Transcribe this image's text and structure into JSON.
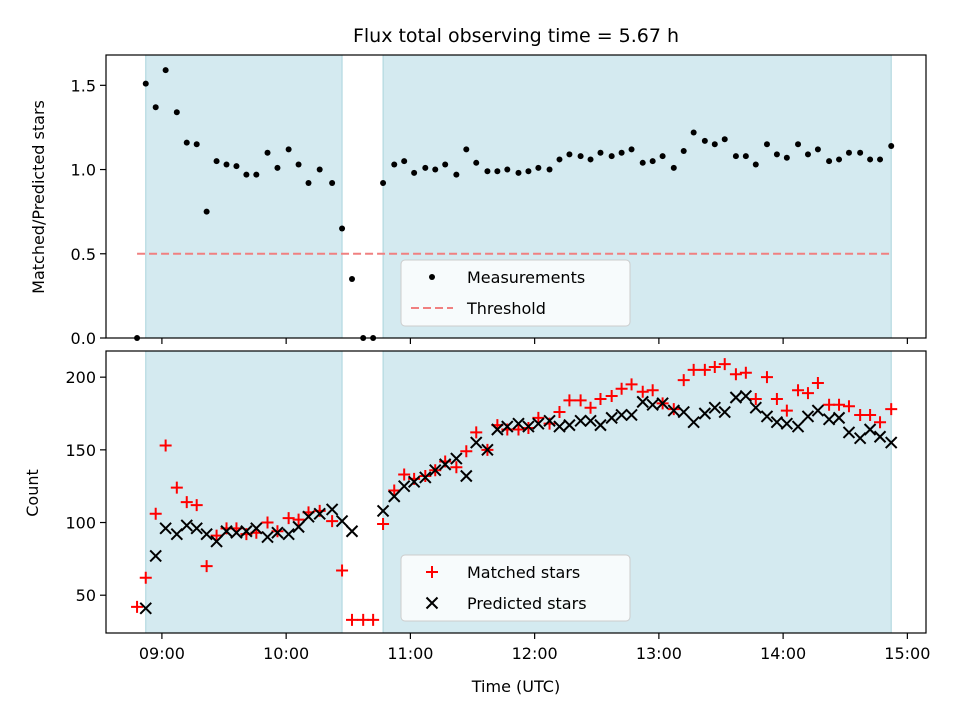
{
  "chart_data": [
    {
      "type": "scatter",
      "title": "Flux total observing time = 5.67 h",
      "xlabel": "",
      "ylabel": "Matched/Predicted stars",
      "xlim": [
        8.55,
        15.15
      ],
      "ylim": [
        0,
        1.68
      ],
      "yticks": [
        0.0,
        0.5,
        1.0,
        1.5
      ],
      "ytick_labels": [
        "0.0",
        "0.5",
        "1.0",
        "1.5"
      ],
      "xticks": [
        9,
        10,
        11,
        12,
        13,
        14,
        15
      ],
      "shaded_spans": [
        [
          8.87,
          10.45
        ],
        [
          10.78,
          14.87
        ]
      ],
      "shade_color": "#d4eaf0",
      "threshold": {
        "name": "Threshold",
        "value": 0.5,
        "x_range": [
          8.8,
          14.87
        ],
        "color": "#f08080"
      },
      "series": [
        {
          "name": "Measurements",
          "color": "#000000",
          "x": [
            8.8,
            8.87,
            8.95,
            9.03,
            9.12,
            9.2,
            9.28,
            9.36,
            9.44,
            9.52,
            9.6,
            9.68,
            9.76,
            9.85,
            9.93,
            10.02,
            10.1,
            10.18,
            10.27,
            10.37,
            10.45,
            10.53,
            10.62,
            10.7,
            10.78,
            10.87,
            10.95,
            11.03,
            11.12,
            11.2,
            11.28,
            11.37,
            11.45,
            11.53,
            11.62,
            11.7,
            11.78,
            11.87,
            11.95,
            12.03,
            12.12,
            12.2,
            12.28,
            12.37,
            12.45,
            12.53,
            12.62,
            12.7,
            12.78,
            12.87,
            12.95,
            13.03,
            13.12,
            13.2,
            13.28,
            13.37,
            13.45,
            13.53,
            13.62,
            13.7,
            13.78,
            13.87,
            13.95,
            14.03,
            14.12,
            14.2,
            14.28,
            14.37,
            14.45,
            14.53,
            14.62,
            14.7,
            14.78,
            14.87
          ],
          "y": [
            0.0,
            1.51,
            1.37,
            1.59,
            1.34,
            1.16,
            1.15,
            0.75,
            1.05,
            1.03,
            1.02,
            0.97,
            0.97,
            1.1,
            1.01,
            1.12,
            1.03,
            0.92,
            1.0,
            0.92,
            0.65,
            0.35,
            0.0,
            0.0,
            0.92,
            1.03,
            1.05,
            0.98,
            1.01,
            1.0,
            1.03,
            0.97,
            1.12,
            1.04,
            0.99,
            0.99,
            1.0,
            0.98,
            0.99,
            1.01,
            1.0,
            1.06,
            1.09,
            1.08,
            1.06,
            1.1,
            1.08,
            1.1,
            1.12,
            1.04,
            1.05,
            1.08,
            1.01,
            1.11,
            1.22,
            1.17,
            1.15,
            1.18,
            1.08,
            1.08,
            1.03,
            1.15,
            1.09,
            1.07,
            1.15,
            1.09,
            1.12,
            1.05,
            1.06,
            1.1,
            1.1,
            1.06,
            1.06,
            1.14
          ]
        }
      ],
      "legend": {
        "location": "lower center",
        "entries": [
          "Measurements",
          "Threshold"
        ]
      }
    },
    {
      "type": "scatter",
      "title": "",
      "xlabel": "Time (UTC)",
      "ylabel": "Count",
      "xlim": [
        8.55,
        15.15
      ],
      "ylim": [
        24,
        218
      ],
      "yticks": [
        50,
        100,
        150,
        200
      ],
      "ytick_labels": [
        "50",
        "100",
        "150",
        "200"
      ],
      "xticks": [
        9,
        10,
        11,
        12,
        13,
        14,
        15
      ],
      "xtick_labels": [
        "09:00",
        "10:00",
        "11:00",
        "12:00",
        "13:00",
        "14:00",
        "15:00"
      ],
      "shaded_spans": [
        [
          8.87,
          10.45
        ],
        [
          10.78,
          14.87
        ]
      ],
      "shade_color": "#d4eaf0",
      "series": [
        {
          "name": "Matched stars",
          "marker": "plus",
          "color": "#ff0000",
          "x": [
            8.8,
            8.87,
            8.95,
            9.03,
            9.12,
            9.2,
            9.28,
            9.36,
            9.44,
            9.52,
            9.6,
            9.68,
            9.76,
            9.85,
            9.93,
            10.02,
            10.1,
            10.18,
            10.27,
            10.37,
            10.45,
            10.53,
            10.62,
            10.7,
            10.78,
            10.87,
            10.95,
            11.03,
            11.12,
            11.2,
            11.28,
            11.37,
            11.45,
            11.53,
            11.62,
            11.7,
            11.78,
            11.87,
            11.95,
            12.03,
            12.12,
            12.2,
            12.28,
            12.37,
            12.45,
            12.53,
            12.62,
            12.7,
            12.78,
            12.87,
            12.95,
            13.03,
            13.12,
            13.2,
            13.28,
            13.37,
            13.45,
            13.53,
            13.62,
            13.7,
            13.78,
            13.87,
            13.95,
            14.03,
            14.12,
            14.2,
            14.28,
            14.37,
            14.45,
            14.53,
            14.62,
            14.7,
            14.78,
            14.87
          ],
          "y": [
            42,
            62,
            106,
            153,
            124,
            114,
            112,
            70,
            91,
            96,
            96,
            92,
            93,
            100,
            94,
            103,
            102,
            107,
            108,
            101,
            67,
            33,
            33,
            33,
            99,
            122,
            133,
            130,
            132,
            136,
            142,
            138,
            149,
            162,
            150,
            167,
            164,
            164,
            165,
            172,
            168,
            176,
            184,
            184,
            179,
            185,
            187,
            192,
            195,
            190,
            191,
            182,
            178,
            198,
            205,
            205,
            207,
            209,
            202,
            203,
            185,
            200,
            185,
            177,
            191,
            189,
            196,
            181,
            181,
            180,
            174,
            174,
            169,
            178
          ]
        },
        {
          "name": "Predicted stars",
          "marker": "x",
          "color": "#000000",
          "x": [
            8.87,
            8.95,
            9.03,
            9.12,
            9.2,
            9.28,
            9.36,
            9.44,
            9.52,
            9.6,
            9.68,
            9.76,
            9.85,
            9.93,
            10.02,
            10.1,
            10.18,
            10.27,
            10.37,
            10.45,
            10.53,
            10.78,
            10.87,
            10.95,
            11.03,
            11.12,
            11.2,
            11.28,
            11.37,
            11.45,
            11.53,
            11.62,
            11.7,
            11.78,
            11.87,
            11.95,
            12.03,
            12.12,
            12.2,
            12.28,
            12.37,
            12.45,
            12.53,
            12.62,
            12.7,
            12.78,
            12.87,
            12.95,
            13.03,
            13.12,
            13.2,
            13.28,
            13.37,
            13.45,
            13.53,
            13.62,
            13.7,
            13.78,
            13.87,
            13.95,
            14.03,
            14.12,
            14.2,
            14.28,
            14.37,
            14.45,
            14.53,
            14.62,
            14.7,
            14.78,
            14.87
          ],
          "y": [
            41,
            77,
            96,
            92,
            98,
            96,
            92,
            87,
            94,
            93,
            94,
            96,
            90,
            93,
            92,
            97,
            104,
            106,
            109,
            101,
            94,
            108,
            118,
            125,
            128,
            131,
            136,
            140,
            144,
            132,
            155,
            150,
            164,
            166,
            168,
            166,
            168,
            170,
            166,
            167,
            170,
            170,
            167,
            172,
            174,
            174,
            183,
            181,
            182,
            177,
            176,
            169,
            175,
            179,
            176,
            186,
            187,
            179,
            173,
            169,
            168,
            166,
            173,
            177,
            171,
            172,
            162,
            158,
            164,
            159,
            155
          ]
        }
      ],
      "legend": {
        "location": "lower center",
        "entries": [
          "Matched stars",
          "Predicted stars"
        ]
      }
    }
  ]
}
